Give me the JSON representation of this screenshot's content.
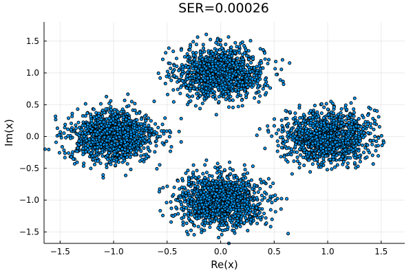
{
  "chart_data": {
    "type": "scatter",
    "title": "SER=0.00026",
    "xlabel": "Re(x)",
    "ylabel": "Im(x)",
    "xlim": [
      -1.65,
      1.72
    ],
    "ylim": [
      -1.68,
      1.8
    ],
    "xticks": [
      -1.5,
      -1.0,
      -0.5,
      0.0,
      0.5,
      1.0,
      1.5
    ],
    "xtick_labels": [
      "−1.5",
      "−1.0",
      "−0.5",
      "0.0",
      "0.5",
      "1.0",
      "1.5"
    ],
    "yticks": [
      -1.5,
      -1.0,
      -0.5,
      0.0,
      0.5,
      1.0,
      1.5
    ],
    "ytick_labels": [
      "−1.5",
      "−1.0",
      "−0.5",
      "0.0",
      "0.5",
      "1.0",
      "1.5"
    ],
    "grid": true,
    "legend": "none",
    "marker_color": "#009af9",
    "marker_edge_color": "#000000",
    "clusters": [
      {
        "center": [
          0.0,
          1.0
        ],
        "spread_x": 0.2,
        "spread_y": 0.2,
        "count": 1200
      },
      {
        "center": [
          -1.0,
          0.0
        ],
        "spread_x": 0.2,
        "spread_y": 0.2,
        "count": 1200
      },
      {
        "center": [
          1.0,
          0.0
        ],
        "spread_x": 0.2,
        "spread_y": 0.2,
        "count": 1200
      },
      {
        "center": [
          0.0,
          -1.0
        ],
        "spread_x": 0.2,
        "spread_y": 0.2,
        "count": 1200
      }
    ]
  }
}
